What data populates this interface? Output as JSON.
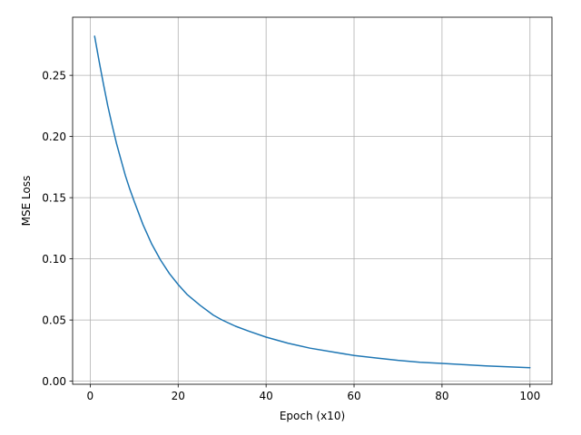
{
  "chart_data": {
    "type": "line",
    "title": "",
    "xlabel": "Epoch (x10)",
    "ylabel": "MSE Loss",
    "xlim": [
      -4.0,
      105.0
    ],
    "ylim": [
      -0.0025,
      0.2975
    ],
    "x_ticks": [
      0,
      20,
      40,
      60,
      80,
      100
    ],
    "x_tick_labels": [
      "0",
      "20",
      "40",
      "60",
      "80",
      "100"
    ],
    "y_ticks": [
      0.0,
      0.05,
      0.1,
      0.15,
      0.2,
      0.25
    ],
    "y_tick_labels": [
      "0.00",
      "0.05",
      "0.10",
      "0.15",
      "0.20",
      "0.25"
    ],
    "grid": true,
    "legend": "none",
    "series": [
      {
        "color": "#1f77b4",
        "x": [
          1,
          2,
          3,
          4,
          5,
          6,
          7,
          8,
          9,
          10,
          12,
          14,
          16,
          18,
          20,
          22,
          25,
          28,
          30,
          33,
          36,
          40,
          45,
          50,
          55,
          60,
          65,
          70,
          75,
          80,
          85,
          90,
          95,
          100
        ],
        "y": [
          0.282,
          0.262,
          0.243,
          0.225,
          0.209,
          0.194,
          0.181,
          0.168,
          0.157,
          0.147,
          0.128,
          0.112,
          0.099,
          0.088,
          0.079,
          0.071,
          0.062,
          0.054,
          0.05,
          0.045,
          0.041,
          0.036,
          0.031,
          0.027,
          0.024,
          0.021,
          0.019,
          0.017,
          0.0155,
          0.0145,
          0.0135,
          0.0125,
          0.0118,
          0.011
        ]
      }
    ]
  }
}
